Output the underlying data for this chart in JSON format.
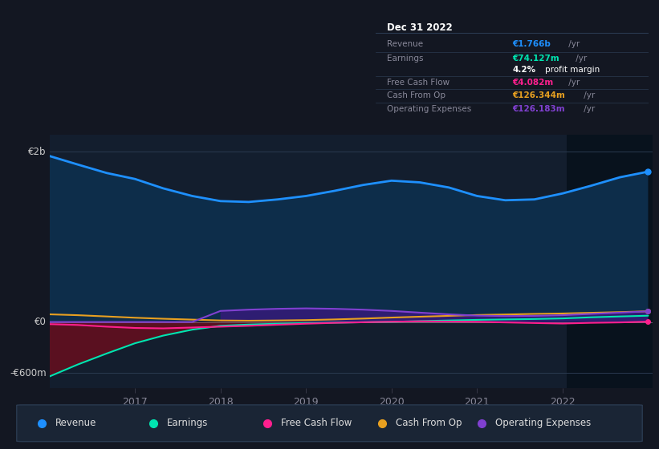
{
  "background_color": "#131722",
  "plot_bg_color": "#131e2e",
  "x_years": [
    2016.0,
    2016.33,
    2016.67,
    2017.0,
    2017.33,
    2017.67,
    2018.0,
    2018.33,
    2018.67,
    2019.0,
    2019.33,
    2019.67,
    2020.0,
    2020.33,
    2020.67,
    2021.0,
    2021.33,
    2021.67,
    2022.0,
    2022.33,
    2022.67,
    2023.0
  ],
  "revenue": [
    1950,
    1850,
    1750,
    1680,
    1570,
    1480,
    1420,
    1410,
    1440,
    1480,
    1540,
    1610,
    1660,
    1640,
    1580,
    1480,
    1430,
    1440,
    1510,
    1600,
    1700,
    1766
  ],
  "earnings": [
    -640,
    -500,
    -370,
    -250,
    -160,
    -90,
    -45,
    -30,
    -20,
    -12,
    -8,
    -3,
    2,
    10,
    18,
    25,
    30,
    35,
    42,
    55,
    65,
    74
  ],
  "free_cash_flow": [
    -25,
    -35,
    -55,
    -70,
    -75,
    -65,
    -55,
    -45,
    -32,
    -20,
    -10,
    -3,
    3,
    8,
    5,
    2,
    -5,
    -12,
    -18,
    -10,
    -5,
    4
  ],
  "cash_from_op": [
    90,
    80,
    65,
    50,
    38,
    28,
    18,
    15,
    18,
    22,
    30,
    40,
    52,
    62,
    72,
    82,
    88,
    95,
    100,
    108,
    116,
    126
  ],
  "operating_expenses": [
    0,
    0,
    0,
    0,
    0,
    0,
    130,
    145,
    155,
    160,
    155,
    145,
    130,
    110,
    90,
    75,
    70,
    72,
    80,
    95,
    110,
    126
  ],
  "revenue_color": "#1e90ff",
  "earnings_color": "#00e5b0",
  "fcf_color": "#ff1f8e",
  "cashop_color": "#e8a020",
  "opex_color": "#8040d0",
  "earnings_fill_neg_color": "#5a1020",
  "revenue_fill_color": "#0d2d4a",
  "opex_fill_color": "#3a1880",
  "highlight_x_start": 2022.05,
  "highlight_x_end": 2023.05,
  "ylim_min": -780,
  "ylim_max": 2200,
  "y_tick_2b": 2000,
  "y_tick_0": 0,
  "y_tick_neg600": -600,
  "x_min": 2016.0,
  "x_max": 2023.05,
  "x_ticks": [
    2017,
    2018,
    2019,
    2020,
    2021,
    2022
  ],
  "legend_labels": [
    "Revenue",
    "Earnings",
    "Free Cash Flow",
    "Cash From Op",
    "Operating Expenses"
  ],
  "legend_colors": [
    "#1e90ff",
    "#00e5b0",
    "#ff1f8e",
    "#e8a020",
    "#8040d0"
  ],
  "info_title": "Dec 31 2022",
  "info_rows": [
    {
      "label": "Revenue",
      "colored": "€1.766b",
      "suffix": " /yr",
      "c_color": "#1e90ff",
      "has_divider": true
    },
    {
      "label": "Earnings",
      "colored": "€74.127m",
      "suffix": " /yr",
      "c_color": "#00e5b0",
      "has_divider": false
    },
    {
      "label": "",
      "colored": "4.2%",
      "suffix": " profit margin",
      "c_color": "#ffffff",
      "has_divider": true
    },
    {
      "label": "Free Cash Flow",
      "colored": "€4.082m",
      "suffix": " /yr",
      "c_color": "#ff1f8e",
      "has_divider": true
    },
    {
      "label": "Cash From Op",
      "colored": "€126.344m",
      "suffix": " /yr",
      "c_color": "#e8a020",
      "has_divider": true
    },
    {
      "label": "Operating Expenses",
      "colored": "€126.183m",
      "suffix": " /yr",
      "c_color": "#8040d0",
      "has_divider": false
    }
  ]
}
